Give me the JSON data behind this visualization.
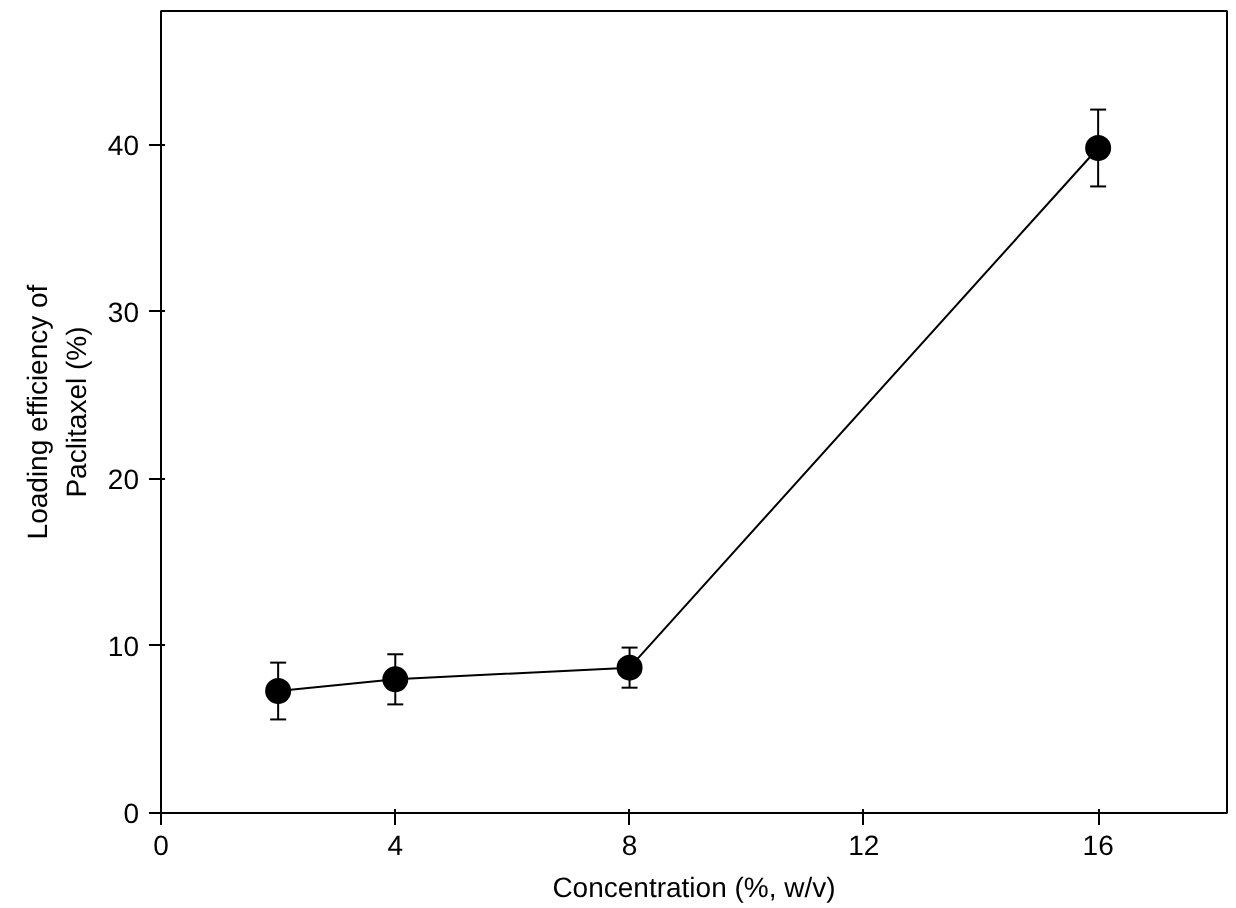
{
  "chart_data": {
    "type": "line",
    "xlabel": "Concentration (%, w/v)",
    "ylabel": "Loading efficiency of\nPaclitaxel (%)",
    "x": [
      2,
      4,
      8,
      16
    ],
    "series": [
      {
        "color": "#000000",
        "values": [
          7.3,
          8.0,
          8.7,
          39.8
        ],
        "errors": [
          1.7,
          1.5,
          1.2,
          2.3
        ]
      }
    ],
    "xlim": [
      0,
      18.2
    ],
    "xticks": [
      0,
      4,
      8,
      12,
      16
    ],
    "ylim": [
      0,
      48
    ],
    "yticks": [
      0,
      10,
      20,
      30,
      40
    ],
    "grid": false,
    "marker": "circle",
    "line_style": "solid"
  }
}
